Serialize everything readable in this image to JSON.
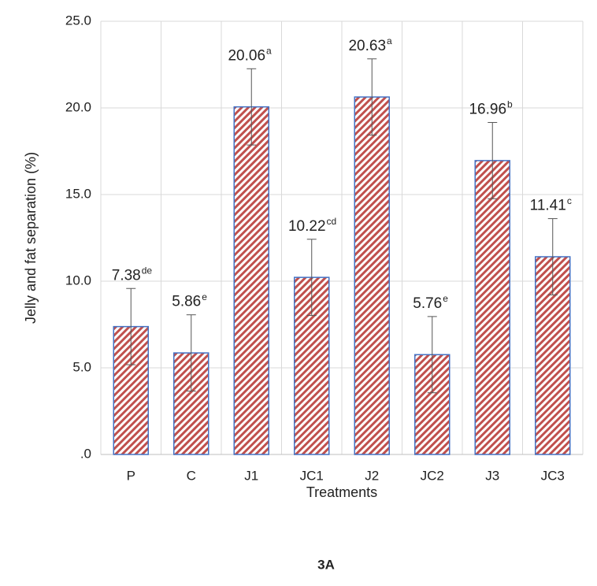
{
  "chart_data": {
    "type": "bar",
    "y_label": "Jelly and fat separation (%)",
    "x_label": "Treatments",
    "caption": "3A",
    "categories": [
      "P",
      "C",
      "J1",
      "JC1",
      "J2",
      "JC2",
      "J3",
      "JC3"
    ],
    "values": [
      7.38,
      5.86,
      20.06,
      10.22,
      20.63,
      5.76,
      16.96,
      11.41
    ],
    "errors": [
      2.2,
      2.2,
      2.2,
      2.2,
      2.2,
      2.2,
      2.2,
      2.2
    ],
    "significance": [
      "de",
      "e",
      "a",
      "cd",
      "a",
      "e",
      "b",
      "c"
    ],
    "color": "#c0504d",
    "edge_color": "#4472c4",
    "ylim": [
      0,
      25
    ],
    "yticks": [
      {
        "value": 0,
        "label": ".0"
      },
      {
        "value": 5,
        "label": "5.0"
      },
      {
        "value": 10,
        "label": "10.0"
      },
      {
        "value": 15,
        "label": "15.0"
      },
      {
        "value": 20,
        "label": "20.0"
      },
      {
        "value": 25,
        "label": "25.0"
      }
    ],
    "grid": true
  }
}
